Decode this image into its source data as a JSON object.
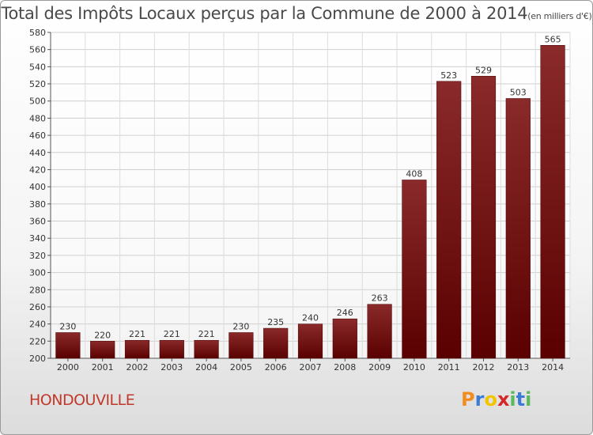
{
  "title": "Total des Impôts Locaux perçus par la Commune de 2000 à 2014",
  "unit_note": "(en milliers d'€)",
  "commune": "HONDOUVILLE",
  "logo": {
    "letters": [
      "P",
      "r",
      "o",
      "x",
      "i",
      "t",
      "i"
    ],
    "colors": [
      "#f28c1e",
      "#3a7bd5",
      "#f2c500",
      "#d62728",
      "#5cb85c",
      "#3a7bd5",
      "#5cb85c"
    ]
  },
  "chart_data": {
    "type": "bar",
    "categories": [
      "2000",
      "2001",
      "2002",
      "2003",
      "2004",
      "2005",
      "2006",
      "2007",
      "2008",
      "2009",
      "2010",
      "2011",
      "2012",
      "2013",
      "2014"
    ],
    "values": [
      230,
      220,
      221,
      221,
      221,
      230,
      235,
      240,
      246,
      263,
      408,
      523,
      529,
      503,
      565
    ],
    "ylim": [
      200,
      580
    ],
    "ytick_step": 20,
    "bar_color": "#7a1a1a",
    "grid": true
  }
}
